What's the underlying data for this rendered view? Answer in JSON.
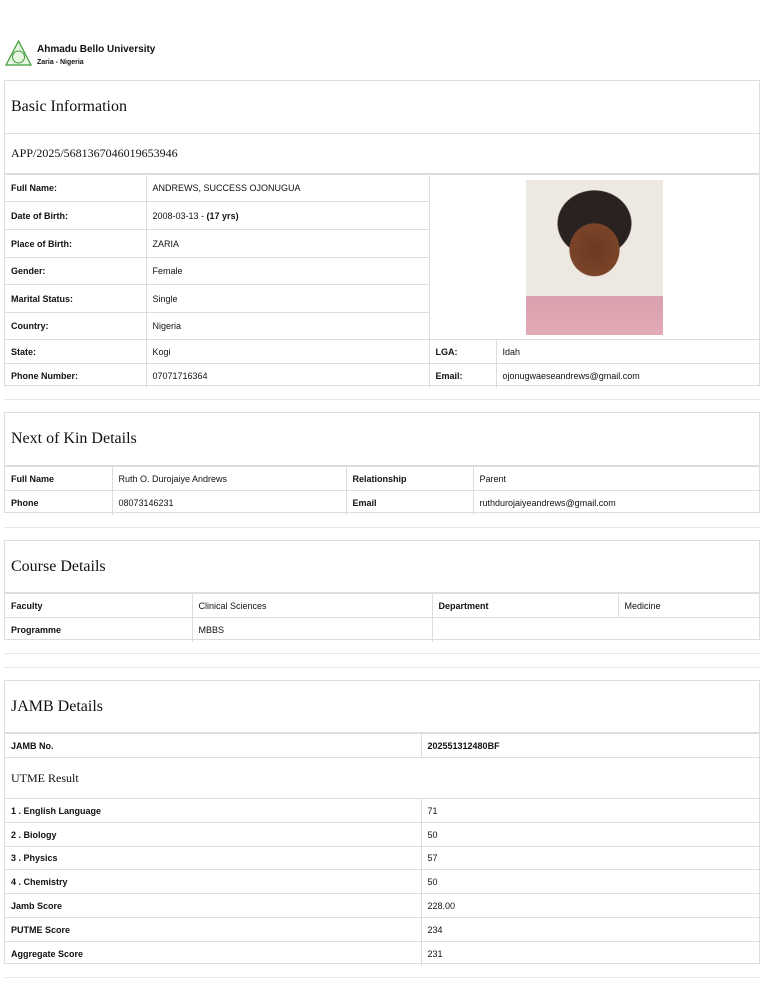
{
  "header": {
    "university": "Ahmadu Bello University",
    "location": "Zaria - Nigeria",
    "logo_icon": "abu-crest-logo"
  },
  "basic": {
    "title": "Basic Information",
    "app_no": "APP/2025/5681367046019653946",
    "rows": [
      {
        "label": "Full Name:",
        "value": "ANDREWS, SUCCESS OJONUGUA"
      },
      {
        "label": "Date of Birth:",
        "value": "2008-03-13 - ",
        "extra": "(17 yrs)"
      },
      {
        "label": "Place of Birth:",
        "value": "ZARIA"
      },
      {
        "label": "Gender:",
        "value": "Female"
      },
      {
        "label": "Marital Status:",
        "value": "Single"
      },
      {
        "label": "Country:",
        "value": "Nigeria"
      }
    ],
    "state_label": "State:",
    "state": "Kogi",
    "lga_label": "LGA:",
    "lga": "Idah",
    "phone_label": "Phone Number:",
    "phone": "07071716364",
    "email_label": "Email:",
    "email": "ojonugwaeseandrews@gmail.com"
  },
  "kin": {
    "title": "Next of Kin Details",
    "name_label": "Full Name",
    "name": "Ruth O. Durojaiye Andrews",
    "rel_label": "Relationship",
    "rel": "Parent",
    "phone_label": "Phone",
    "phone": "08073146231",
    "email_label": "Email",
    "email": "ruthdurojaiyeandrews@gmail.com"
  },
  "course": {
    "title": "Course Details",
    "faculty_label": "Faculty",
    "faculty": "Clinical Sciences",
    "dept_label": "Department",
    "dept": "Medicine",
    "prog_label": "Programme",
    "prog": "MBBS"
  },
  "jamb": {
    "title": "JAMB Details",
    "no_label": "JAMB No.",
    "no": "202551312480BF",
    "utme_title": "UTME Result",
    "rows": [
      {
        "label": "1 . English Language",
        "value": "71"
      },
      {
        "label": "2 . Biology",
        "value": "50"
      },
      {
        "label": "3 . Physics",
        "value": "57"
      },
      {
        "label": "4 . Chemistry",
        "value": "50"
      },
      {
        "label": "Jamb Score",
        "value": "228.00"
      },
      {
        "label": "PUTME Score",
        "value": "234"
      },
      {
        "label": "Aggregate Score",
        "value": "231"
      }
    ]
  }
}
